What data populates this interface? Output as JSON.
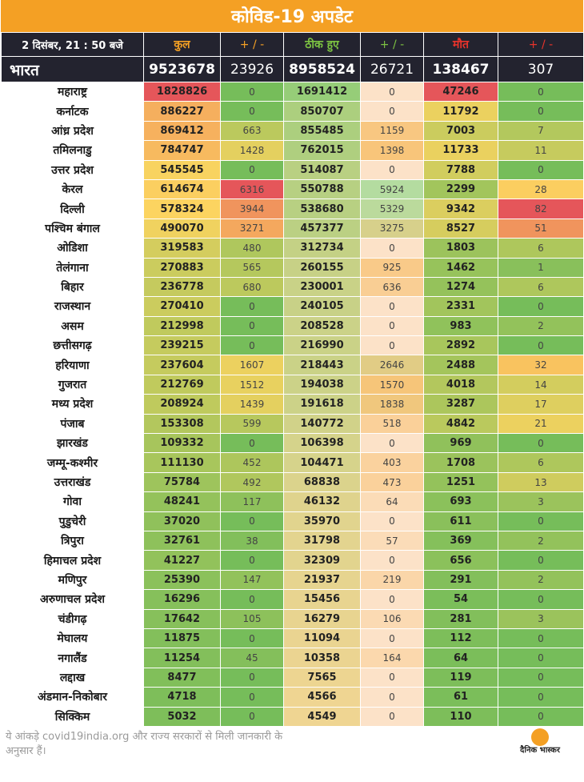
{
  "title": "कोविड-19 अपडेट",
  "header": {
    "date": "2  दिसंबर, 21 : 50 बजे",
    "cols": [
      "कुल",
      "+ / -",
      "ठीक हुए",
      "+ / -",
      "मौत",
      "+ / -"
    ],
    "col_colors": [
      "#f4a024",
      "#f4a024",
      "#7cc242",
      "#7cc242",
      "#e8332b",
      "#e8332b"
    ]
  },
  "total": {
    "name": "भारत",
    "values": [
      "9523678",
      "23926",
      "8958524",
      "26721",
      "138467",
      "307"
    ]
  },
  "rows": [
    {
      "name": "महाराष्ट्र",
      "total": "1828826",
      "total_d": "0",
      "rec": "1691412",
      "rec_d": "0",
      "death": "47246",
      "death_d": "0"
    },
    {
      "name": "कर्नाटक",
      "total": "886227",
      "total_d": "0",
      "rec": "850707",
      "rec_d": "0",
      "death": "11792",
      "death_d": "0"
    },
    {
      "name": "आंध्र प्रदेश",
      "total": "869412",
      "total_d": "663",
      "rec": "855485",
      "rec_d": "1159",
      "death": "7003",
      "death_d": "7"
    },
    {
      "name": "तमिलनाडु",
      "total": "784747",
      "total_d": "1428",
      "rec": "762015",
      "rec_d": "1398",
      "death": "11733",
      "death_d": "11"
    },
    {
      "name": "उत्तर प्रदेश",
      "total": "545545",
      "total_d": "0",
      "rec": "514087",
      "rec_d": "0",
      "death": "7788",
      "death_d": "0"
    },
    {
      "name": "केरल",
      "total": "614674",
      "total_d": "6316",
      "rec": "550788",
      "rec_d": "5924",
      "death": "2299",
      "death_d": "28"
    },
    {
      "name": "दिल्ली",
      "total": "578324",
      "total_d": "3944",
      "rec": "538680",
      "rec_d": "5329",
      "death": "9342",
      "death_d": "82"
    },
    {
      "name": "पश्चिम बंगाल",
      "total": "490070",
      "total_d": "3271",
      "rec": "457377",
      "rec_d": "3275",
      "death": "8527",
      "death_d": "51"
    },
    {
      "name": "ओडिशा",
      "total": "319583",
      "total_d": "480",
      "rec": "312734",
      "rec_d": "0",
      "death": "1803",
      "death_d": "6"
    },
    {
      "name": "तेलंगाना",
      "total": "270883",
      "total_d": "565",
      "rec": "260155",
      "rec_d": "925",
      "death": "1462",
      "death_d": "1"
    },
    {
      "name": "बिहार",
      "total": "236778",
      "total_d": "680",
      "rec": "230001",
      "rec_d": "636",
      "death": "1274",
      "death_d": "6"
    },
    {
      "name": "राजस्थान",
      "total": "270410",
      "total_d": "0",
      "rec": "240105",
      "rec_d": "0",
      "death": "2331",
      "death_d": "0"
    },
    {
      "name": "असम",
      "total": "212998",
      "total_d": "0",
      "rec": "208528",
      "rec_d": "0",
      "death": "983",
      "death_d": "2"
    },
    {
      "name": "छत्तीसगढ़",
      "total": "239215",
      "total_d": "0",
      "rec": "216990",
      "rec_d": "0",
      "death": "2892",
      "death_d": "0"
    },
    {
      "name": "हरियाणा",
      "total": "237604",
      "total_d": "1607",
      "rec": "218443",
      "rec_d": "2646",
      "death": "2488",
      "death_d": "32"
    },
    {
      "name": "गुजरात",
      "total": "212769",
      "total_d": "1512",
      "rec": "194038",
      "rec_d": "1570",
      "death": "4018",
      "death_d": "14"
    },
    {
      "name": "मध्य प्रदेश",
      "total": "208924",
      "total_d": "1439",
      "rec": "191618",
      "rec_d": "1838",
      "death": "3287",
      "death_d": "17"
    },
    {
      "name": "पंजाब",
      "total": "153308",
      "total_d": "599",
      "rec": "140772",
      "rec_d": "518",
      "death": "4842",
      "death_d": "21"
    },
    {
      "name": "झारखंड",
      "total": "109332",
      "total_d": "0",
      "rec": "106398",
      "rec_d": "0",
      "death": "969",
      "death_d": "0"
    },
    {
      "name": "जम्मू-कश्मीर",
      "total": "111130",
      "total_d": "452",
      "rec": "104471",
      "rec_d": "403",
      "death": "1708",
      "death_d": "6"
    },
    {
      "name": "उत्तराखंड",
      "total": "75784",
      "total_d": "492",
      "rec": "68838",
      "rec_d": "473",
      "death": "1251",
      "death_d": "13"
    },
    {
      "name": "गोवा",
      "total": "48241",
      "total_d": "117",
      "rec": "46132",
      "rec_d": "64",
      "death": "693",
      "death_d": "3"
    },
    {
      "name": "पुडुचेरी",
      "total": "37020",
      "total_d": "0",
      "rec": "35970",
      "rec_d": "0",
      "death": "611",
      "death_d": "0"
    },
    {
      "name": "त्रिपुरा",
      "total": "32761",
      "total_d": "38",
      "rec": "31798",
      "rec_d": "57",
      "death": "369",
      "death_d": "2"
    },
    {
      "name": "हिमाचल प्रदेश",
      "total": "41227",
      "total_d": "0",
      "rec": "32309",
      "rec_d": "0",
      "death": "656",
      "death_d": "0"
    },
    {
      "name": "मणिपुर",
      "total": "25390",
      "total_d": "147",
      "rec": "21937",
      "rec_d": "219",
      "death": "291",
      "death_d": "2"
    },
    {
      "name": "अरुणाचल प्रदेश",
      "total": "16296",
      "total_d": "0",
      "rec": "15456",
      "rec_d": "0",
      "death": "54",
      "death_d": "0"
    },
    {
      "name": "चंडीगढ़",
      "total": "17642",
      "total_d": "105",
      "rec": "16279",
      "rec_d": "106",
      "death": "281",
      "death_d": "3"
    },
    {
      "name": "मेघालय",
      "total": "11875",
      "total_d": "0",
      "rec": "11094",
      "rec_d": "0",
      "death": "112",
      "death_d": "0"
    },
    {
      "name": "नगालैंड",
      "total": "11254",
      "total_d": "45",
      "rec": "10358",
      "rec_d": "164",
      "death": "64",
      "death_d": "0"
    },
    {
      "name": "लद्दाख",
      "total": "8477",
      "total_d": "0",
      "rec": "7565",
      "rec_d": "0",
      "death": "119",
      "death_d": "0"
    },
    {
      "name": "अंडमान-निकोबार",
      "total": "4718",
      "total_d": "0",
      "rec": "4566",
      "rec_d": "0",
      "death": "61",
      "death_d": "0"
    },
    {
      "name": "सिक्किम",
      "total": "5032",
      "total_d": "0",
      "rec": "4549",
      "rec_d": "0",
      "death": "110",
      "death_d": "0"
    }
  ],
  "footer": {
    "note": "ये आंकड़े covid19india.org और राज्य सरकारों से मिली जानकारी के अनुसार हैं।",
    "logo_text": "दैनिक भास्कर"
  },
  "colors": {
    "title_bg": "#f4a024",
    "header_bg": "#23232f"
  }
}
